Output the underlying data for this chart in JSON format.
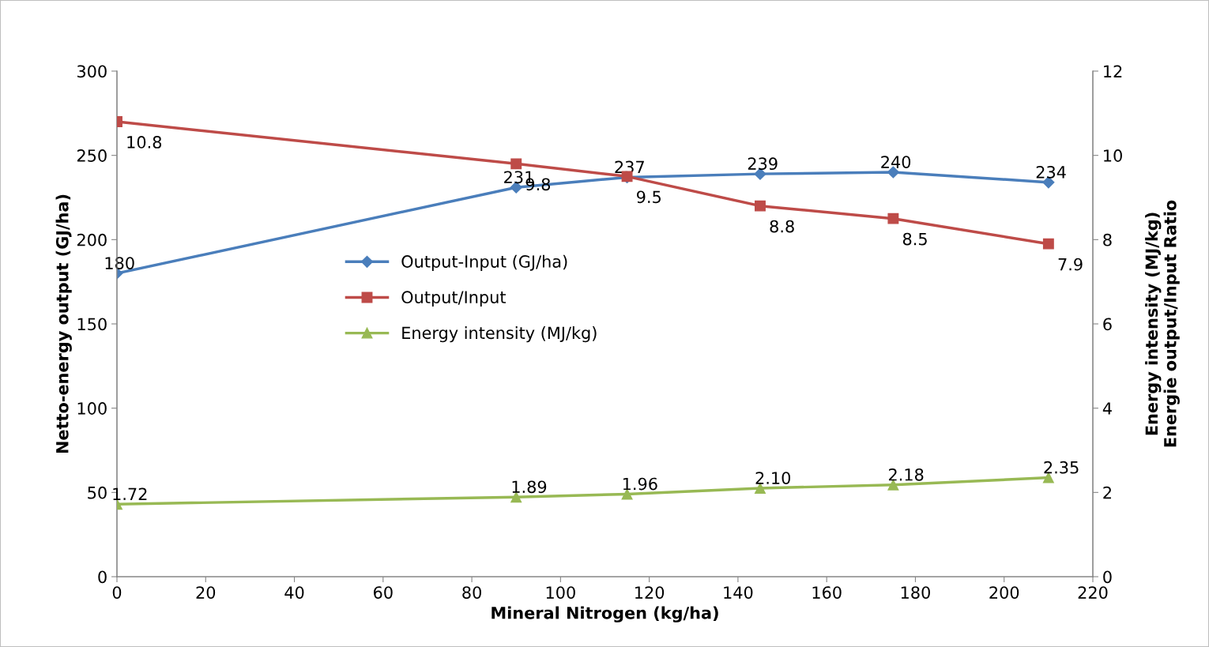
{
  "chart_data": {
    "type": "line",
    "xlabel": "Mineral Nitrogen (kg/ha)",
    "ylabel": "Netto-energy output (GJ/ha)",
    "y2label": "Energy intensity (MJ/kg)\nEnergie output/Input Ratio",
    "x": [
      0,
      90,
      115,
      145,
      175,
      210
    ],
    "series": [
      {
        "name": "Output-Input (GJ/ha)",
        "color": "#4a7ebb",
        "marker": "diamond",
        "values": [
          180,
          231,
          237,
          239,
          240,
          234
        ],
        "value_labels": [
          "180",
          "231",
          "237",
          "239",
          "240",
          "234"
        ]
      },
      {
        "name": "Output/Input",
        "color": "#be4b48",
        "marker": "square",
        "axis": "y2",
        "values": [
          10.8,
          9.8,
          9.5,
          8.8,
          8.5,
          7.9
        ],
        "value_labels": [
          "10.8",
          "9.8",
          "9.5",
          "8.8",
          "8.5",
          "7.9"
        ]
      },
      {
        "name": "Energy intensity (MJ/kg)",
        "color": "#98b954",
        "marker": "triangle",
        "axis": "y2",
        "values": [
          1.72,
          1.89,
          1.96,
          2.1,
          2.18,
          2.35
        ],
        "value_labels": [
          "1.72",
          "1.89",
          "1.96",
          "2.10",
          "2.18",
          "2.35"
        ]
      }
    ],
    "xlim": [
      0,
      220
    ],
    "xticks": [
      0,
      20,
      40,
      60,
      80,
      100,
      120,
      140,
      160,
      180,
      200,
      220
    ],
    "ylim": [
      0,
      300
    ],
    "yticks": [
      0,
      50,
      100,
      150,
      200,
      250,
      300
    ],
    "y2lim": [
      0,
      12
    ],
    "y2ticks": [
      0,
      2,
      4,
      6,
      8,
      10,
      12
    ],
    "grid": false,
    "legend": "center left",
    "line_style": "solid"
  }
}
